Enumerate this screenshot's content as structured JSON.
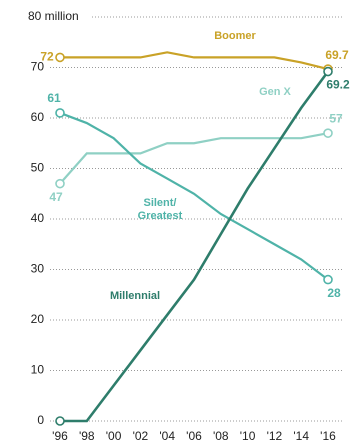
{
  "chart_data": {
    "type": "line",
    "categories": [
      "'96",
      "'98",
      "'00",
      "'02",
      "'04",
      "'06",
      "'08",
      "'10",
      "'12",
      "'14",
      "'16"
    ],
    "ylim": [
      0,
      80
    ],
    "yticks": [
      0,
      10,
      20,
      30,
      40,
      50,
      60,
      70,
      {
        "value": 80,
        "label": "80 million"
      }
    ],
    "grid": true,
    "series": [
      {
        "name": "Boomer",
        "color": "#c9a227",
        "values": [
          72,
          72,
          72,
          72,
          73,
          72,
          72,
          72,
          72,
          71,
          69.7
        ]
      },
      {
        "name": "Gen X",
        "color": "#8fd0c4",
        "values": [
          47,
          53,
          53,
          53,
          55,
          55,
          56,
          56,
          56,
          56,
          57
        ]
      },
      {
        "name": "Silent/ Greatest",
        "color": "#4fb3a8",
        "values": [
          61,
          59,
          56,
          51,
          48,
          45,
          41,
          38,
          35,
          32,
          28
        ]
      },
      {
        "name": "Millennial",
        "color": "#2e7d6b",
        "values": [
          0,
          0,
          7,
          14,
          21,
          28,
          37,
          46,
          54,
          62,
          69.2
        ]
      }
    ]
  }
}
